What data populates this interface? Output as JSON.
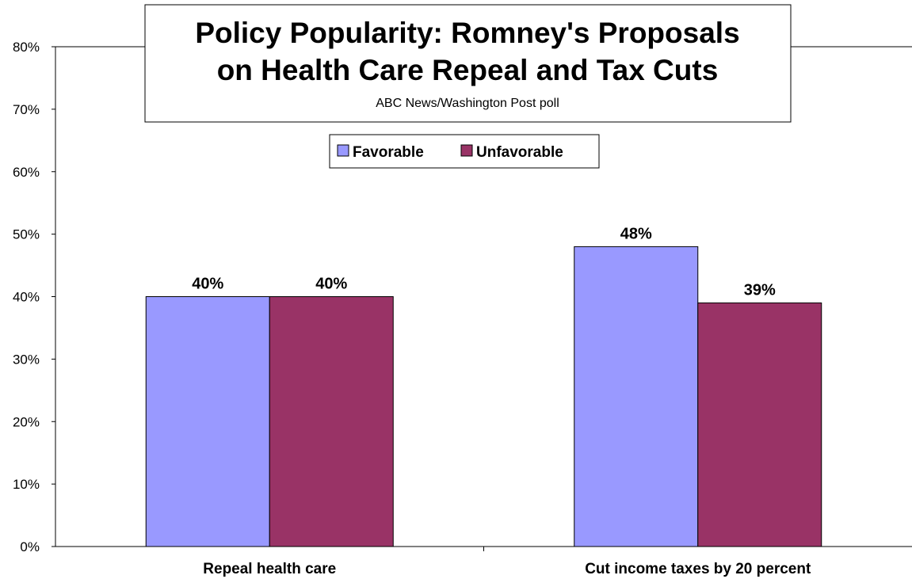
{
  "chart_data": {
    "type": "bar",
    "title": "Policy Popularity: Romney's Proposals on Health Care Repeal and Tax Cuts",
    "title_lines": [
      "Policy Popularity: Romney's Proposals",
      "on Health Care Repeal and Tax Cuts"
    ],
    "subtitle": "ABC News/Washington  Post poll",
    "categories": [
      "Repeal health care",
      "Cut income taxes by 20 percent"
    ],
    "series": [
      {
        "name": "Favorable",
        "values": [
          40,
          48
        ],
        "color": "#9999ff",
        "labels": [
          "40%",
          "48%"
        ]
      },
      {
        "name": "Unfavorable",
        "values": [
          40,
          39
        ],
        "color": "#993366",
        "labels": [
          "40%",
          "39%"
        ]
      }
    ],
    "ylim": [
      0,
      80
    ],
    "yticks": [
      0,
      10,
      20,
      30,
      40,
      50,
      60,
      70,
      80
    ],
    "ytick_labels": [
      "0%",
      "10%",
      "20%",
      "30%",
      "40%",
      "50%",
      "60%",
      "70%",
      "80%"
    ],
    "xlabel": "",
    "ylabel": "",
    "grid": false,
    "legend_position": "top-center"
  }
}
